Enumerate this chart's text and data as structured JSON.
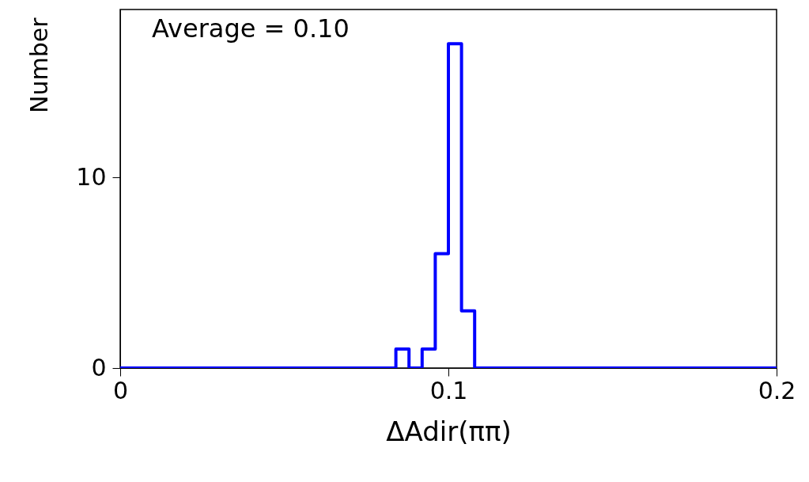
{
  "chart_data": {
    "type": "histogram",
    "xlabel": "ΔAdir(ππ)",
    "ylabel": "Number",
    "bins": [
      0,
      0.084,
      0.088,
      0.092,
      0.096,
      0.1,
      0.104,
      0.108,
      0.2
    ],
    "values": [
      0,
      1,
      0,
      1,
      6,
      17,
      3,
      0
    ],
    "color": "#0000ff",
    "xlim": [
      0,
      0.2
    ],
    "xticks": [
      0,
      0.1,
      0.2
    ],
    "ylim": [
      0,
      18.8
    ],
    "yticks": [
      0,
      10
    ],
    "grid": false,
    "annotations": [
      "Average = 0.10"
    ]
  }
}
